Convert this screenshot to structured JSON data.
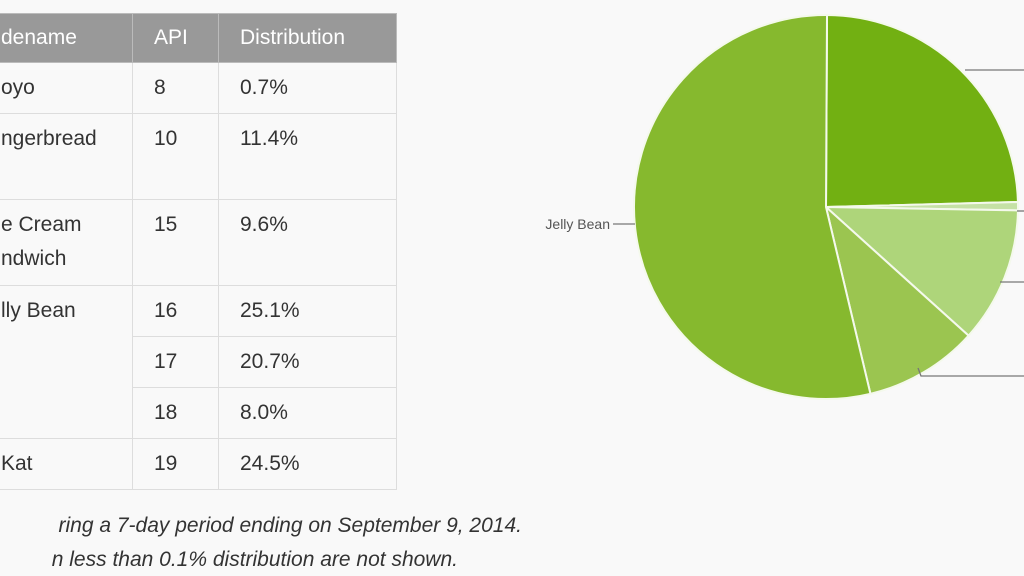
{
  "table": {
    "headers": [
      "dename",
      "API",
      "Distribution"
    ],
    "rows": [
      {
        "codename": "oyo",
        "api": "8",
        "dist": "0.7%"
      },
      {
        "codename": "ngerbread",
        "api": "10",
        "dist": "11.4%"
      },
      {
        "codename": "e Cream\nndwich",
        "api": "15",
        "dist": "9.6%"
      },
      {
        "codename": "lly Bean",
        "api": "16",
        "dist": "25.1%"
      },
      {
        "codename": "",
        "api": "17",
        "dist": "20.7%"
      },
      {
        "codename": "",
        "api": "18",
        "dist": "8.0%"
      },
      {
        "codename": "Kat",
        "api": "19",
        "dist": "24.5%"
      }
    ]
  },
  "notes": {
    "line1": "ring a 7-day period ending on September 9, 2014.",
    "line2": "n less than 0.1% distribution are not shown."
  },
  "chart_data": {
    "type": "pie",
    "direction": "clockwise from top",
    "slices": [
      {
        "name": "KitKat",
        "value": 24.5,
        "color": "#72b012"
      },
      {
        "name": "Froyo",
        "value": 0.7,
        "color": "#c5e1a5"
      },
      {
        "name": "Gingerbread",
        "value": 11.4,
        "color": "#aed57a"
      },
      {
        "name": "Ice Cream Sandwich",
        "value": 9.6,
        "color": "#9bc550"
      },
      {
        "name": "Jelly Bean",
        "value": 53.8,
        "color": "#86b92e"
      }
    ],
    "visible_labels": [
      "Jelly Bean"
    ]
  }
}
